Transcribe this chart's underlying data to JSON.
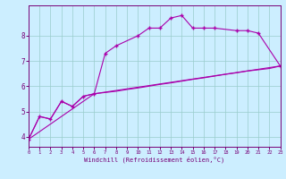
{
  "xlabel": "Windchill (Refroidissement éolien,°C)",
  "bg_color": "#cceeff",
  "line_color": "#aa00aa",
  "grid_color": "#99cccc",
  "axis_color": "#770077",
  "series1_x": [
    0,
    1,
    2,
    3,
    4,
    5,
    6,
    7,
    8,
    10,
    11,
    12,
    13,
    14,
    15,
    16,
    17,
    19,
    20,
    21,
    23
  ],
  "series1_y": [
    3.9,
    4.8,
    4.7,
    5.4,
    5.2,
    5.6,
    5.7,
    7.3,
    7.6,
    8.0,
    8.3,
    8.3,
    8.7,
    8.8,
    8.3,
    8.3,
    8.3,
    8.2,
    8.2,
    8.1,
    6.8
  ],
  "series2_x": [
    0,
    6,
    23
  ],
  "series2_y": [
    3.9,
    5.7,
    6.8
  ],
  "series3_x": [
    0,
    1,
    2,
    3,
    4,
    5,
    6,
    7,
    8,
    9,
    10,
    11,
    12,
    13,
    14,
    15,
    16,
    17,
    18,
    19,
    20,
    21,
    22,
    23
  ],
  "series3_y": [
    3.9,
    4.8,
    4.7,
    5.4,
    5.2,
    5.6,
    5.7,
    5.75,
    5.8,
    5.87,
    5.93,
    6.0,
    6.07,
    6.13,
    6.2,
    6.27,
    6.33,
    6.4,
    6.47,
    6.53,
    6.6,
    6.65,
    6.7,
    6.8
  ],
  "xlim": [
    0,
    23
  ],
  "ylim": [
    3.6,
    9.2
  ],
  "yticks": [
    4,
    5,
    6,
    7,
    8
  ],
  "xticks": [
    0,
    1,
    2,
    3,
    4,
    5,
    6,
    7,
    8,
    9,
    10,
    11,
    12,
    13,
    14,
    15,
    16,
    17,
    18,
    19,
    20,
    21,
    22,
    23
  ]
}
